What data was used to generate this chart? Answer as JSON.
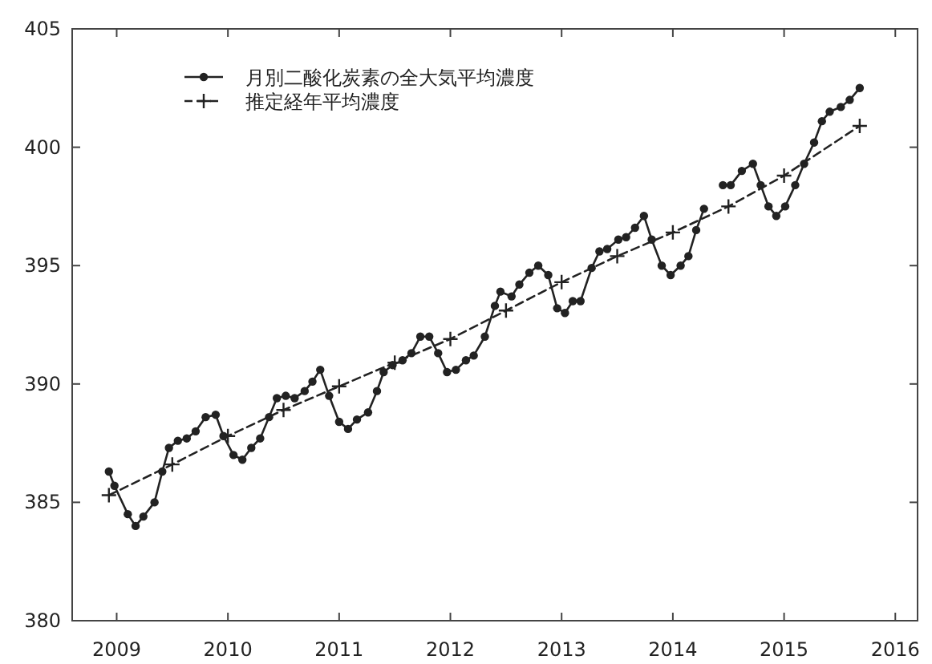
{
  "chart_data": {
    "type": "line",
    "xlim": [
      2009.1,
      2016.7
    ],
    "ylim": [
      380,
      405
    ],
    "xticks": [
      {
        "value": 2009.5,
        "label": "2009"
      },
      {
        "value": 2010.5,
        "label": "2010"
      },
      {
        "value": 2011.5,
        "label": "2011"
      },
      {
        "value": 2012.5,
        "label": "2012"
      },
      {
        "value": 2013.5,
        "label": "2013"
      },
      {
        "value": 2014.5,
        "label": "2014"
      },
      {
        "value": 2015.5,
        "label": "2015"
      },
      {
        "value": 2016.5,
        "label": "2016"
      }
    ],
    "yticks": [
      380,
      385,
      390,
      395,
      400,
      405
    ],
    "legend": "top left",
    "series": [
      {
        "name": "月別二酸化炭素の全大気平均濃度",
        "color": "#222222",
        "marker": "circle",
        "line_style": "solid",
        "x": [
          2009.43,
          2009.48,
          2009.6,
          2009.67,
          2009.74,
          2009.84,
          2009.91,
          2009.97,
          2010.05,
          2010.13,
          2010.21,
          2010.3,
          2010.39,
          2010.46,
          2010.55,
          2010.63,
          2010.71,
          2010.79,
          2010.87,
          2010.94,
          2011.02,
          2011.1,
          2011.19,
          2011.26,
          2011.33,
          2011.41,
          2011.5,
          2011.58,
          2011.66,
          2011.76,
          2011.84,
          2011.9,
          2011.98,
          2012.07,
          2012.15,
          2012.23,
          2012.31,
          2012.39,
          2012.47,
          2012.55,
          2012.64,
          2012.71,
          2012.81,
          2012.9,
          2012.95,
          2013.05,
          2013.12,
          2013.21,
          2013.29,
          2013.38,
          2013.46,
          2013.53,
          2013.6,
          2013.67,
          2013.77,
          2013.84,
          2013.91,
          2014.01,
          2014.08,
          2014.16,
          2014.24,
          2014.31,
          2014.4,
          2014.48,
          2014.57,
          2014.64,
          2014.71,
          2014.78,
          2014.87,
          2014.95,
          2015.02,
          2015.12,
          2015.22,
          2015.29,
          2015.36,
          2015.43,
          2015.51,
          2015.6,
          2015.68,
          2015.77,
          2015.84,
          2015.91,
          2016.01,
          2016.09,
          2016.18
        ],
        "values": [
          386.3,
          385.7,
          384.5,
          384.0,
          384.4,
          385.0,
          386.3,
          387.3,
          387.6,
          387.7,
          388.0,
          388.6,
          388.7,
          387.8,
          387.0,
          386.8,
          387.3,
          387.7,
          388.6,
          389.4,
          389.5,
          389.4,
          389.7,
          390.1,
          390.6,
          389.5,
          388.4,
          388.1,
          388.5,
          388.8,
          389.7,
          390.5,
          390.8,
          391.0,
          391.3,
          392.0,
          392.0,
          391.3,
          390.5,
          390.6,
          391.0,
          391.2,
          392.0,
          393.3,
          393.9,
          393.7,
          394.2,
          394.7,
          395.0,
          394.6,
          393.2,
          393.0,
          393.5,
          393.5,
          394.9,
          395.6,
          395.7,
          396.1,
          396.2,
          396.6,
          397.1,
          396.1,
          395.0,
          394.6,
          395.0,
          395.4,
          396.5,
          397.4,
          null,
          398.4,
          398.4,
          399.0,
          399.3,
          398.4,
          397.5,
          397.1,
          397.5,
          398.4,
          399.3,
          400.2,
          401.1,
          401.5,
          401.7,
          402.0,
          402.5
        ]
      },
      {
        "name": "推定経年平均濃度",
        "color": "#222222",
        "marker": "cross",
        "line_style": "dashed",
        "x": [
          2009.43,
          2010.0,
          2010.5,
          2011.0,
          2011.5,
          2012.0,
          2012.5,
          2013.0,
          2013.5,
          2014.0,
          2014.5,
          2015.0,
          2015.5,
          2016.18
        ],
        "values": [
          385.3,
          386.6,
          387.8,
          388.9,
          389.9,
          390.9,
          391.9,
          393.1,
          394.3,
          395.4,
          396.4,
          397.5,
          398.8,
          400.9
        ]
      }
    ]
  }
}
